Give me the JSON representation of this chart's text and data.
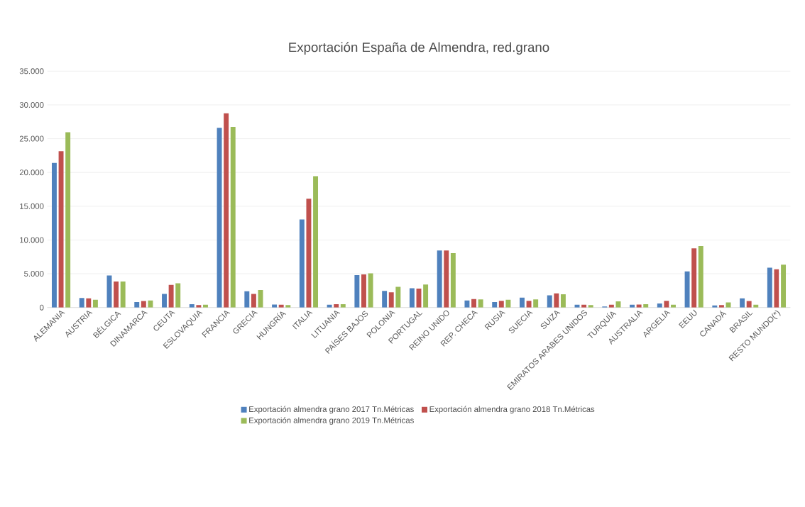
{
  "chart_data": {
    "type": "bar",
    "title": "Exportación España de Almendra, red.grano",
    "categories": [
      "ALEMANIA",
      "AUSTRIA",
      "BÉLGICA",
      "DINAMARCA",
      "CEUTA",
      "ESLOVAQUIA",
      "FRANCIA",
      "GRECIA",
      "HUNGRÍA",
      "ITALIA",
      "LITUANIA",
      "PAÍSES BAJOS",
      "POLONIA",
      "PORTUGAL",
      "REINO UNIDO",
      "REP. CHECA",
      "RUSIA",
      "SUECIA",
      "SUIZA",
      "EMIRATOS ARABES UNIDOS",
      "TURQUÍA",
      "AUSTRALIA",
      "ARGELIA",
      "EEUU",
      "CANADÁ",
      "BRASIL",
      "RESTO MUNDO(*)"
    ],
    "series": [
      {
        "name": "Exportación almendra grano 2017 Tn.Métricas",
        "color": "#4f81bd",
        "values": [
          21400,
          1400,
          4750,
          800,
          2000,
          500,
          26600,
          2400,
          450,
          13050,
          400,
          4800,
          2450,
          2850,
          8450,
          1050,
          800,
          1450,
          1800,
          400,
          150,
          400,
          600,
          5350,
          300,
          1350,
          5900
        ]
      },
      {
        "name": "Exportación almendra grano 2018 Tn.Métricas",
        "color": "#c0504d",
        "values": [
          23150,
          1350,
          3850,
          950,
          3350,
          350,
          28750,
          2000,
          400,
          16100,
          500,
          4900,
          2250,
          2800,
          8450,
          1250,
          1000,
          1000,
          2100,
          400,
          400,
          450,
          1000,
          8750,
          350,
          950,
          5650
        ]
      },
      {
        "name": "Exportación almendra grano 2019 Tn.Métricas",
        "color": "#9bbb59",
        "values": [
          25950,
          1150,
          3850,
          1050,
          3600,
          400,
          26750,
          2600,
          350,
          19450,
          500,
          5050,
          3050,
          3400,
          8050,
          1200,
          1150,
          1200,
          1950,
          350,
          900,
          500,
          400,
          9100,
          750,
          400,
          6350
        ]
      }
    ],
    "ylim": [
      0,
      35000
    ],
    "yticks": [
      {
        "value": 0,
        "label": "0"
      },
      {
        "value": 5000,
        "label": "5.000"
      },
      {
        "value": 10000,
        "label": "10.000"
      },
      {
        "value": 15000,
        "label": "15.000"
      },
      {
        "value": 20000,
        "label": "20.000"
      },
      {
        "value": 25000,
        "label": "25.000"
      },
      {
        "value": 30000,
        "label": "30.000"
      },
      {
        "value": 35000,
        "label": "35.000"
      }
    ],
    "grid": "y",
    "legend": "bottom"
  }
}
